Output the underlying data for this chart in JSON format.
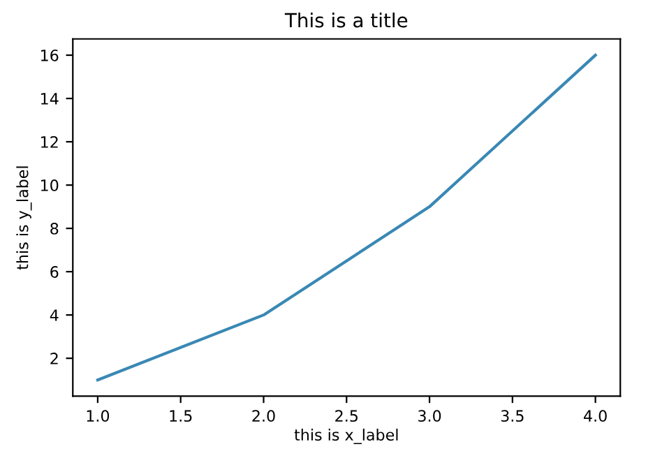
{
  "chart_data": {
    "type": "line",
    "title": "This is a title",
    "xlabel": "this is x_label",
    "ylabel": "this is y_label",
    "x": [
      1,
      2,
      3,
      4
    ],
    "series": [
      {
        "color": "#3a88b4",
        "values": [
          1,
          4,
          9,
          16
        ]
      }
    ],
    "xlim": [
      0.85,
      4.15
    ],
    "ylim": [
      0.25,
      16.75
    ],
    "xticks": [
      {
        "value": 1,
        "label": "1.0"
      },
      {
        "value": 1.5,
        "label": "1.5"
      },
      {
        "value": 2,
        "label": "2.0"
      },
      {
        "value": 2.5,
        "label": "2.5"
      },
      {
        "value": 3,
        "label": "3.0"
      },
      {
        "value": 3.5,
        "label": "3.5"
      },
      {
        "value": 4,
        "label": "4.0"
      }
    ],
    "yticks": [
      2,
      4,
      6,
      8,
      10,
      12,
      14,
      16
    ],
    "grid": false
  }
}
